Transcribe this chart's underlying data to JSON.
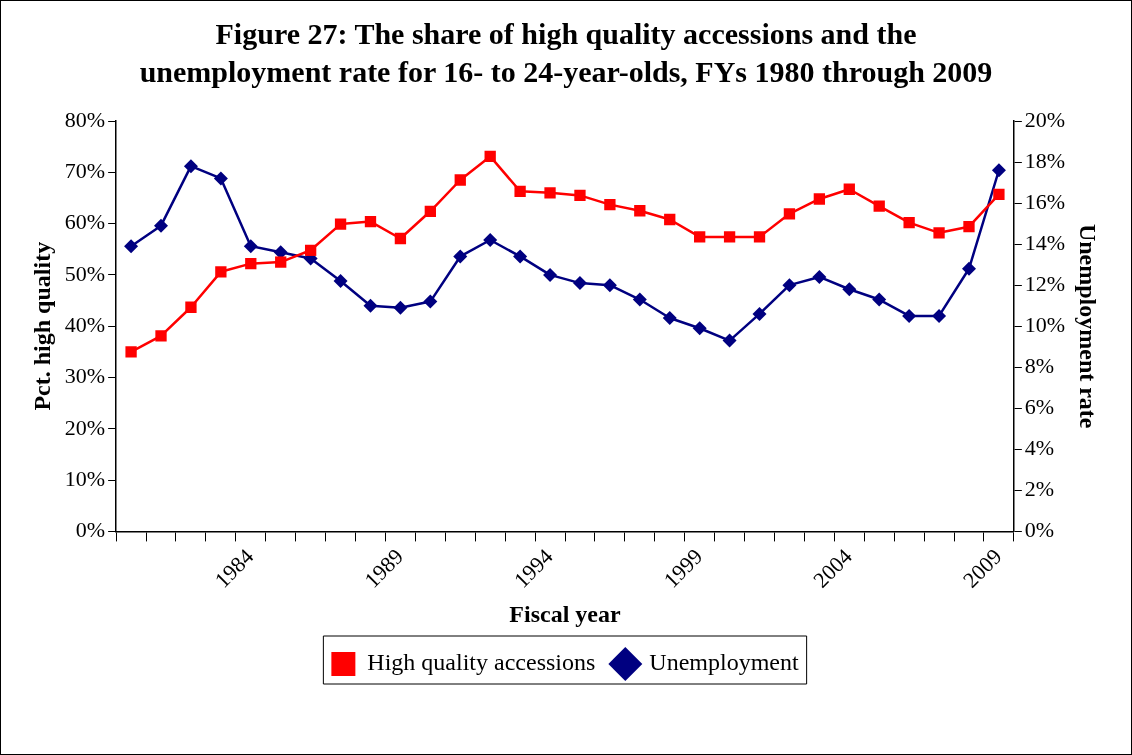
{
  "chart_data": {
    "type": "line",
    "title": "Figure 27: The share of high quality accessions and the unemployment rate for 16- to 24-year-olds, FYs 1980 through 2009",
    "xlabel": "Fiscal year",
    "ylabel": "Pct. high quality",
    "y2label": "Unemployment rate",
    "categories": [
      null,
      null,
      null,
      null,
      "1984",
      null,
      null,
      null,
      null,
      "1989",
      null,
      null,
      null,
      null,
      "1994",
      null,
      null,
      null,
      null,
      "1999",
      null,
      null,
      null,
      null,
      "2004",
      null,
      null,
      null,
      null,
      "2009"
    ],
    "series": [
      {
        "name": "High quality accessions",
        "color": "#ff0000",
        "marker": "square",
        "values": [
          35.0,
          38.1,
          43.7,
          50.6,
          52.2,
          52.5,
          54.8,
          59.9,
          60.4,
          57.1,
          62.4,
          68.5,
          73.1,
          66.3,
          66.0,
          65.5,
          63.7,
          62.5,
          60.8,
          57.4,
          57.4,
          57.4,
          61.9,
          64.8,
          66.7,
          63.4,
          60.2,
          58.2,
          59.4,
          65.7
        ]
      },
      {
        "name": "Unemployment",
        "color": "#000080",
        "marker": "diamond",
        "axis": "y2",
        "values": [
          13.9,
          14.9,
          17.8,
          17.2,
          13.9,
          13.6,
          13.3,
          12.2,
          11.0,
          10.9,
          11.2,
          13.4,
          14.2,
          13.4,
          12.5,
          12.1,
          12.0,
          11.3,
          10.4,
          9.9,
          9.3,
          10.6,
          12.0,
          12.4,
          11.8,
          11.3,
          10.5,
          10.5,
          12.8,
          17.6
        ]
      }
    ],
    "ylim": [
      0,
      80
    ],
    "yticks": [
      {
        "value": 0,
        "label": "0%"
      },
      {
        "value": 10,
        "label": "10%"
      },
      {
        "value": 20,
        "label": "20%"
      },
      {
        "value": 30,
        "label": "30%"
      },
      {
        "value": 40,
        "label": "40%"
      },
      {
        "value": 50,
        "label": "50%"
      },
      {
        "value": 60,
        "label": "60%"
      },
      {
        "value": 70,
        "label": "70%"
      },
      {
        "value": 80,
        "label": "80%"
      }
    ],
    "y2lim": [
      0,
      20
    ],
    "y2ticks": [
      {
        "value": 0,
        "label": "0%"
      },
      {
        "value": 2,
        "label": "2%"
      },
      {
        "value": 4,
        "label": "4%"
      },
      {
        "value": 6,
        "label": "6%"
      },
      {
        "value": 8,
        "label": "8%"
      },
      {
        "value": 10,
        "label": "10%"
      },
      {
        "value": 12,
        "label": "12%"
      },
      {
        "value": 14,
        "label": "14%"
      },
      {
        "value": 16,
        "label": "16%"
      },
      {
        "value": 18,
        "label": "18%"
      },
      {
        "value": 20,
        "label": "20%"
      }
    ],
    "grid": false,
    "legend": "bottom",
    "line_style": "solid"
  }
}
